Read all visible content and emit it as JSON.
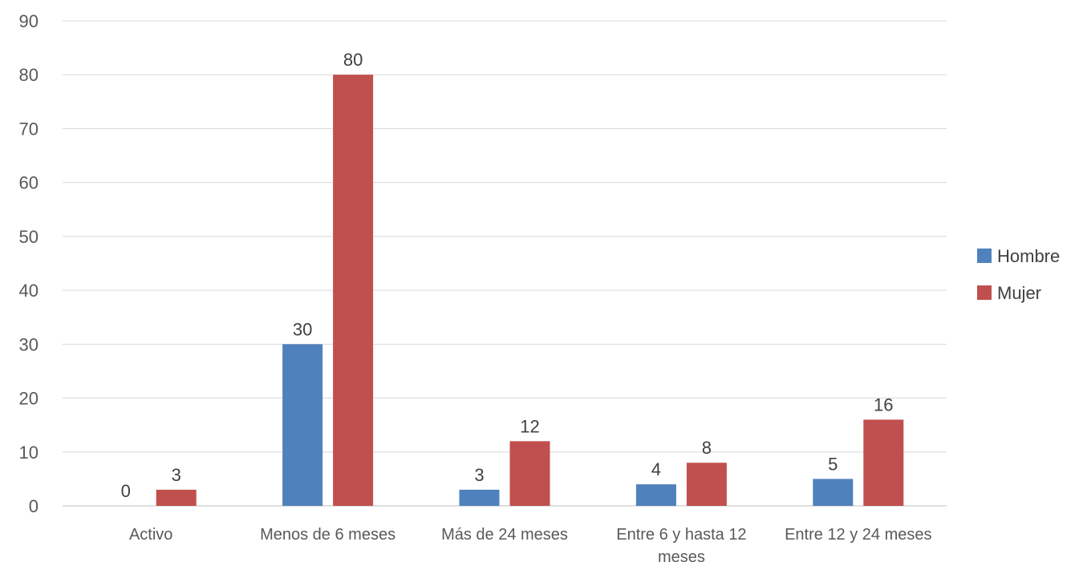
{
  "chart_data": {
    "type": "bar",
    "categories": [
      [
        "Activo"
      ],
      [
        "Menos de 6 meses"
      ],
      [
        "Más de 24 meses"
      ],
      [
        "Entre 6 y hasta 12",
        "meses"
      ],
      [
        "Entre 12 y 24 meses"
      ]
    ],
    "series": [
      {
        "name": "Hombre",
        "color": "#4f81bd",
        "values": [
          0,
          30,
          3,
          4,
          5
        ]
      },
      {
        "name": "Mujer",
        "color": "#c0504d",
        "values": [
          3,
          80,
          12,
          8,
          16
        ]
      }
    ],
    "ylim": [
      0,
      90
    ],
    "yticks": [
      0,
      10,
      20,
      30,
      40,
      50,
      60,
      70,
      80,
      90
    ],
    "grid": true,
    "legend_position": "right",
    "data_labels": true
  }
}
